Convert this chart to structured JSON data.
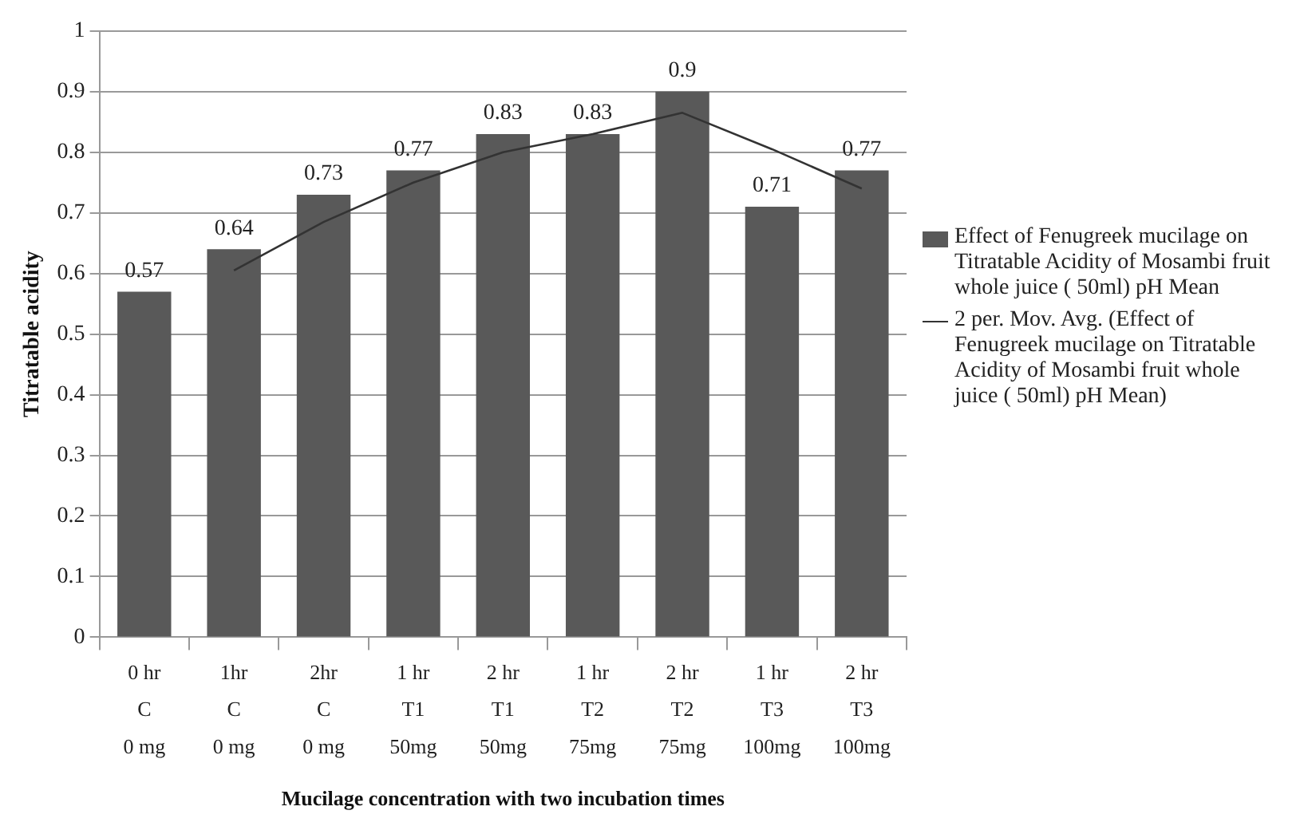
{
  "chart_data": {
    "type": "bar",
    "xlabel": "Mucilage concentration with two incubation times",
    "ylabel": "Titratable acidity",
    "categories": [
      "0 hr\nC\n0 mg",
      "1hr\nC\n0 mg",
      "2hr\nC\n0 mg",
      "1 hr\nT1\n50mg",
      "2 hr\nT1\n50mg",
      "1 hr\nT2\n75mg",
      "2 hr\nT2\n75mg",
      "1 hr\nT3\n100mg",
      "2 hr\nT3\n100mg"
    ],
    "series": [
      {
        "name": "Effect of Fenugreek mucilage on Titratable Acidity  of Mosambi fruit whole juice ( 50ml) pH  Mean",
        "color": "#595959",
        "values": [
          0.57,
          0.64,
          0.73,
          0.77,
          0.83,
          0.83,
          0.9,
          0.71,
          0.77
        ]
      },
      {
        "type": "line",
        "name": "2 per. Mov. Avg. (Effect of Fenugreek mucilage on Titratable Acidity  of Mosambi fruit whole juice ( 50ml) pH  Mean)",
        "color": "#333333",
        "values": [
          null,
          0.605,
          0.685,
          0.75,
          0.8,
          0.83,
          0.865,
          0.805,
          0.74
        ],
        "value_labels": [
          null,
          null,
          null,
          null,
          null,
          null,
          null,
          null,
          null
        ]
      }
    ],
    "ylim": [
      0,
      1
    ],
    "yticks": [
      0,
      0.1,
      0.2,
      0.3,
      0.4,
      0.5,
      0.6,
      0.7,
      0.8,
      0.9,
      1
    ],
    "grid": "y",
    "legend": "right",
    "data_labels": true,
    "marker": "none"
  }
}
